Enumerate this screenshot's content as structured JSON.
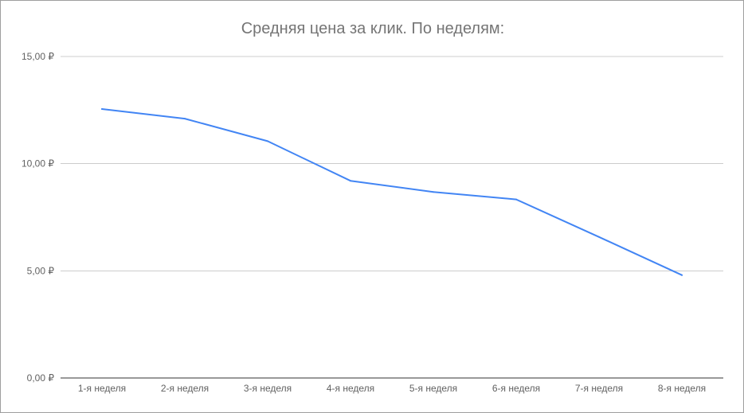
{
  "chart_data": {
    "type": "line",
    "title": "Средняя цена за клик. По неделям:",
    "xlabel": "",
    "ylabel": "",
    "categories": [
      "1-я неделя",
      "2-я неделя",
      "3-я неделя",
      "4-я неделя",
      "5-я неделя",
      "6-я неделя",
      "7-я неделя",
      "8-я неделя"
    ],
    "series": [
      {
        "values": [
          12.55,
          12.1,
          11.05,
          9.2,
          8.68,
          8.33,
          6.58,
          4.8
        ]
      }
    ],
    "ylim": [
      0,
      15
    ],
    "yticks": [
      0,
      5,
      10,
      15
    ],
    "ytick_labels": [
      "0,00 ₽",
      "5,00 ₽",
      "10,00 ₽",
      "15,00 ₽"
    ],
    "grid": true,
    "legend": "none",
    "colors": {
      "line": "#4285f4",
      "grid": "#cccccc",
      "axis": "#333333",
      "title": "#757575",
      "ticks": "#616161"
    }
  }
}
